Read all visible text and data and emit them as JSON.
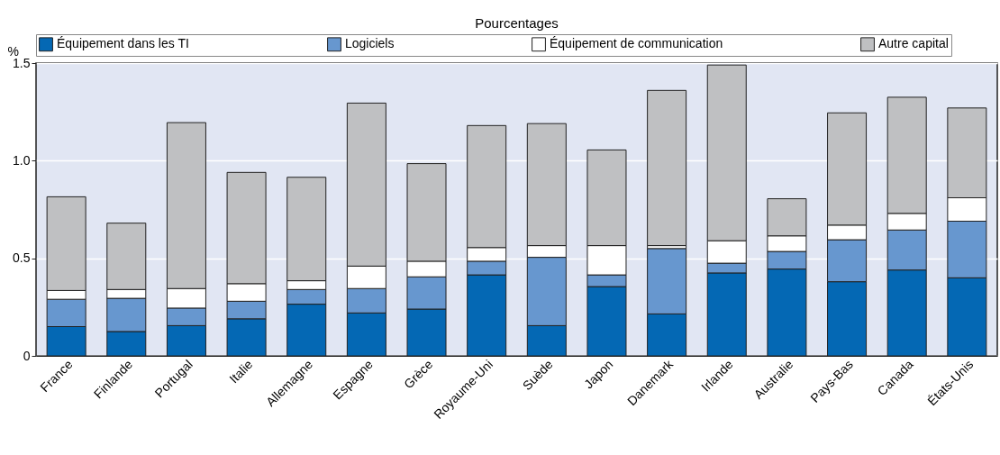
{
  "chart_data": {
    "type": "bar",
    "subtitle": "Pourcentages",
    "ylabel": "%",
    "stacked": true,
    "categories": [
      "France",
      "Finlande",
      "Portugal",
      "Italie",
      "Allemagne",
      "Espagne",
      "Grèce",
      "Royaume-Uni",
      "Suède",
      "Japon",
      "Danemark",
      "Irlande",
      "Australie",
      "Pays-Bas",
      "Canada",
      "États-Unis"
    ],
    "series": [
      {
        "name": "Équipement dans les TI",
        "color": "#0468b4",
        "values": [
          0.15,
          0.125,
          0.155,
          0.19,
          0.265,
          0.22,
          0.24,
          0.415,
          0.155,
          0.355,
          0.215,
          0.425,
          0.445,
          0.38,
          0.44,
          0.4
        ]
      },
      {
        "name": "Logiciels",
        "color": "#6797cf",
        "values": [
          0.14,
          0.17,
          0.09,
          0.09,
          0.075,
          0.125,
          0.165,
          0.07,
          0.35,
          0.06,
          0.335,
          0.05,
          0.09,
          0.215,
          0.205,
          0.29
        ]
      },
      {
        "name": "Équipement de communication",
        "color": "#ffffff",
        "values": [
          0.045,
          0.045,
          0.1,
          0.09,
          0.045,
          0.115,
          0.08,
          0.07,
          0.06,
          0.15,
          0.015,
          0.115,
          0.08,
          0.075,
          0.085,
          0.12
        ]
      },
      {
        "name": "Autre capital",
        "color": "#bfc0c2",
        "values": [
          0.48,
          0.34,
          0.85,
          0.57,
          0.53,
          0.835,
          0.5,
          0.625,
          0.625,
          0.49,
          0.795,
          0.9,
          0.19,
          0.575,
          0.595,
          0.46
        ]
      }
    ],
    "ylim": [
      0,
      1.5
    ],
    "yticks": [
      0,
      {
        "value": 0.5,
        "label": "0.5"
      },
      {
        "value": 1,
        "label": "1.0"
      },
      {
        "value": 1.5,
        "label": "1.5"
      }
    ],
    "grid": "y",
    "legend": "top"
  }
}
